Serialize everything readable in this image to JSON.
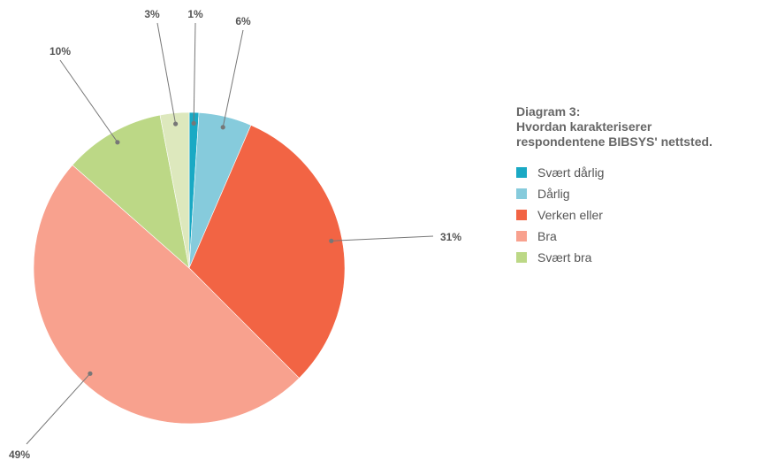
{
  "chart_data": {
    "type": "pie",
    "title_lines": [
      "Diagram 3:",
      "Hvordan karakteriserer",
      "respondentene BIBSYS' nettsted."
    ],
    "slices": [
      {
        "label": "Svært dårlig",
        "value": 1,
        "display": "1%",
        "color": "#1aa9c4",
        "in_legend": true
      },
      {
        "label": "Dårlig",
        "value": 5.5,
        "display": "6%",
        "color": "#86cbdc",
        "in_legend": true
      },
      {
        "label": "Verken eller",
        "value": 31,
        "display": "31%",
        "color": "#f26444",
        "in_legend": true
      },
      {
        "label": "Bra",
        "value": 49,
        "display": "49%",
        "color": "#f8a18e",
        "in_legend": true
      },
      {
        "label": "Svært bra",
        "value": 10.5,
        "display": "10%",
        "color": "#bcd886",
        "in_legend": true
      },
      {
        "label": "",
        "value": 3,
        "display": "3%",
        "color": "#dde8bd",
        "in_legend": false
      }
    ],
    "legend_position": "right"
  }
}
